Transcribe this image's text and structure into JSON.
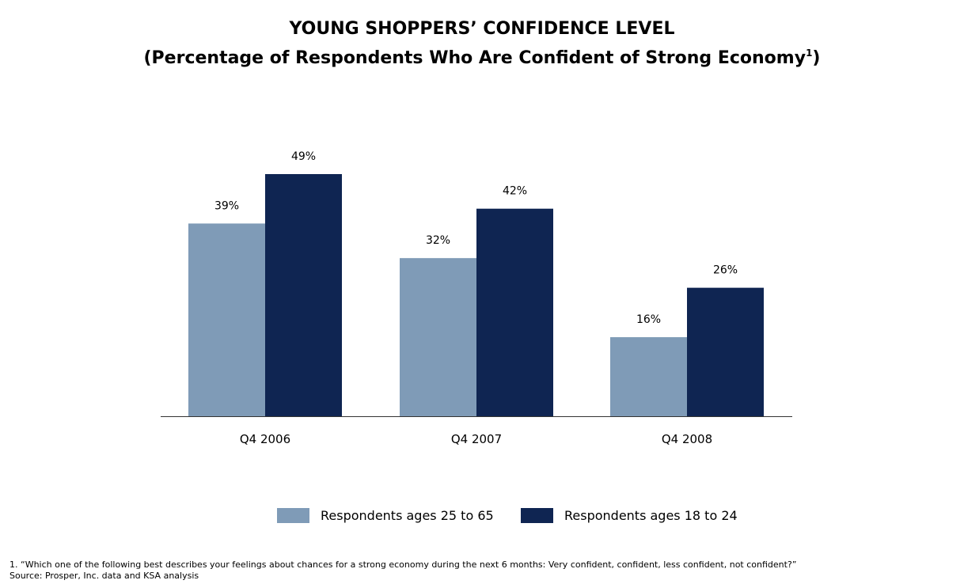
{
  "title": {
    "line1": "YOUNG SHOPPERS’ CONFIDENCE LEVEL",
    "line2_text": "(Percentage of Respondents Who Are Confident of Strong Economy",
    "line2_sup": "1",
    "line2_close": ")"
  },
  "chart_data": {
    "type": "bar",
    "categories": [
      "Q4 2006",
      "Q4 2007",
      "Q4 2008"
    ],
    "series": [
      {
        "name": "Respondents ages 25 to 65",
        "values": [
          39,
          32,
          16
        ],
        "labels": [
          "39%",
          "32%",
          "16%"
        ],
        "color": "#7f9bb7"
      },
      {
        "name": "Respondents ages 18 to 24",
        "values": [
          49,
          42,
          26
        ],
        "labels": [
          "49%",
          "42%",
          "26%"
        ],
        "color": "#0f2552"
      }
    ],
    "ylim": [
      0,
      49
    ],
    "grid": false,
    "legend_position": "bottom"
  },
  "footnotes": {
    "note1": "1. “Which one of the following best describes your feelings about chances for a strong economy during the next 6 months: Very confident, confident, less confident, not confident?”",
    "source": "Source: Prosper, Inc. data and KSA analysis"
  }
}
